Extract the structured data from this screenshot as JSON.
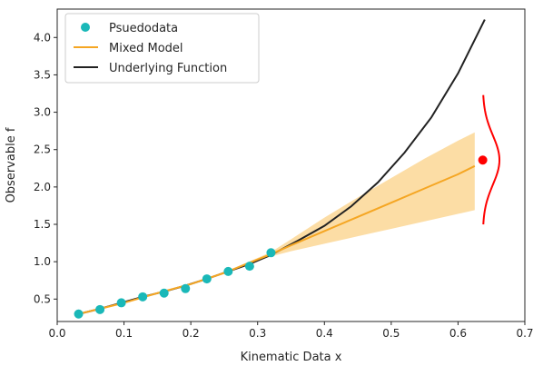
{
  "chart_data": {
    "type": "line",
    "title": "",
    "xlabel": "Kinematic Data x",
    "ylabel": "Observable f",
    "xlim": [
      0.0,
      0.7
    ],
    "ylim": [
      0.2,
      4.38
    ],
    "xticks": [
      0.0,
      0.1,
      0.2,
      0.3,
      0.4,
      0.5,
      0.6,
      0.7
    ],
    "xtick_labels": [
      "0.0",
      "0.1",
      "0.2",
      "0.3",
      "0.4",
      "0.5",
      "0.6",
      "0.7"
    ],
    "yticks": [
      0.5,
      1.0,
      1.5,
      2.0,
      2.5,
      3.0,
      3.5,
      4.0
    ],
    "ytick_labels": [
      "0.5",
      "1.0",
      "1.5",
      "2.0",
      "2.5",
      "3.0",
      "3.5",
      "4.0"
    ],
    "grid": false,
    "legend_position": "top-left",
    "series": [
      {
        "name": "Psuedodata",
        "kind": "scatter",
        "color": "#1ab8b8",
        "x": [
          0.032,
          0.064,
          0.096,
          0.128,
          0.16,
          0.192,
          0.224,
          0.256,
          0.288,
          0.32
        ],
        "y": [
          0.3,
          0.36,
          0.45,
          0.53,
          0.58,
          0.64,
          0.77,
          0.87,
          0.94,
          1.12
        ]
      },
      {
        "name": "Mixed Model",
        "kind": "line",
        "color": "#f5a623",
        "band_color": "#fbd287",
        "x": [
          0.032,
          0.1,
          0.15,
          0.2,
          0.25,
          0.3,
          0.32,
          0.35,
          0.4,
          0.45,
          0.5,
          0.55,
          0.6,
          0.625
        ],
        "y": [
          0.3,
          0.45,
          0.58,
          0.7,
          0.85,
          1.03,
          1.1,
          1.22,
          1.41,
          1.6,
          1.79,
          1.98,
          2.17,
          2.28
        ],
        "lower": [
          0.3,
          0.45,
          0.58,
          0.7,
          0.84,
          1.01,
          1.07,
          1.14,
          1.24,
          1.34,
          1.44,
          1.54,
          1.64,
          1.69
        ],
        "upper": [
          0.3,
          0.45,
          0.58,
          0.71,
          0.86,
          1.05,
          1.13,
          1.3,
          1.59,
          1.86,
          2.12,
          2.38,
          2.62,
          2.73
        ]
      },
      {
        "name": "Underlying Function",
        "kind": "line",
        "color": "#222222",
        "x": [
          0.032,
          0.064,
          0.096,
          0.128,
          0.16,
          0.192,
          0.224,
          0.256,
          0.288,
          0.32,
          0.36,
          0.4,
          0.44,
          0.48,
          0.52,
          0.56,
          0.6,
          0.64
        ],
        "y": [
          0.3,
          0.37,
          0.45,
          0.53,
          0.6,
          0.68,
          0.77,
          0.87,
          0.97,
          1.09,
          1.28,
          1.48,
          1.74,
          2.06,
          2.46,
          2.93,
          3.52,
          4.24
        ]
      }
    ],
    "annotations": [
      {
        "kind": "point",
        "color": "#ff0000",
        "x": 0.637,
        "y": 2.36
      },
      {
        "kind": "distribution-curve",
        "color": "#ff0000",
        "orientation": "vertical",
        "base_x": 0.637,
        "center_y": 2.36,
        "sigma_y": 0.33,
        "width_x": 0.025,
        "y_range": [
          1.5,
          3.23
        ]
      }
    ]
  }
}
